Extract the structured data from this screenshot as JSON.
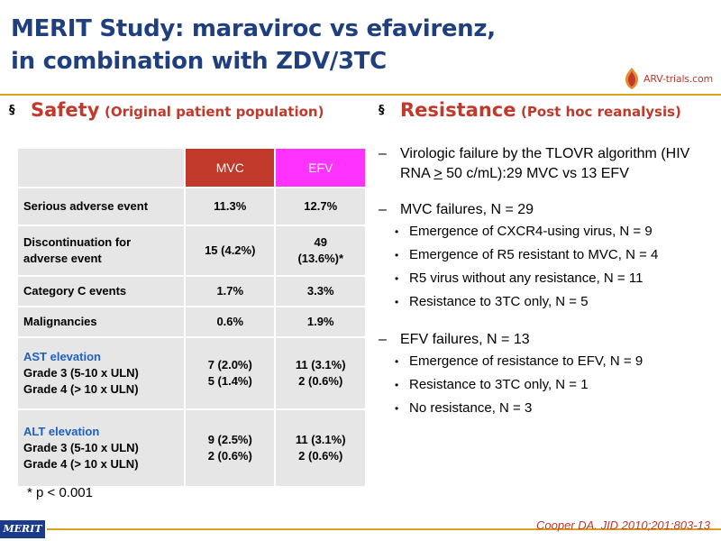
{
  "title": {
    "line1": "MERIT Study: maraviroc vs efavirenz,",
    "line2": "in combination with ZDV/3TC"
  },
  "logo": {
    "text": "ARV-trials.com",
    "icon": "logo-mark-icon"
  },
  "safety": {
    "heading": "Safety",
    "subheading": "(Original patient population)",
    "bullet": "§",
    "table": {
      "header": [
        "",
        "MVC",
        "EFV"
      ],
      "rows": [
        {
          "label": [
            "Serious adverse event"
          ],
          "mvc": [
            "11.3%"
          ],
          "efv": [
            "12.7%"
          ]
        },
        {
          "label": [
            "Discontinuation for",
            "adverse event"
          ],
          "mvc": [
            "15 (4.2%)"
          ],
          "efv": [
            "49",
            "(13.6%)*"
          ]
        },
        {
          "label": [
            "Category C events"
          ],
          "mvc": [
            "1.7%"
          ],
          "efv": [
            "3.3%"
          ]
        },
        {
          "label": [
            "Malignancies"
          ],
          "mvc": [
            "0.6%"
          ],
          "efv": [
            "1.9%"
          ]
        },
        {
          "label": [
            "AST elevation",
            "Grade 3 (5-10 x ULN)",
            "Grade 4 (> 10 x ULN)"
          ],
          "mvc": [
            "7 (2.0%)",
            "5 (1.4%)"
          ],
          "efv": [
            "11 (3.1%)",
            "2 (0.6%)"
          ]
        },
        {
          "label": [
            "ALT elevation",
            "Grade 3  (5-10 x ULN)",
            "Grade 4  (> 10 x ULN)"
          ],
          "mvc": [
            "9 (2.5%)",
            "2 (0.6%)"
          ],
          "efv": [
            "11 (3.1%)",
            "2 (0.6%)"
          ]
        }
      ]
    },
    "footnote": "* p < 0.001"
  },
  "resistance": {
    "heading": "Resistance",
    "subheading": "(Post hoc reanalysis)",
    "bullet": "§",
    "items": [
      {
        "dash": "–",
        "text_before": "Virologic failure by the TLOVR algorithm (HIV RNA ",
        "underlined": ">",
        "text_after": " 50 c/mL):29 MVC vs 13 EFV",
        "subitems": []
      },
      {
        "dash": "–",
        "text_before": "MVC failures, N = 29",
        "underlined": "",
        "text_after": "",
        "subitems": [
          "Emergence of CXCR4-using virus, N = 9",
          "Emergence of R5 resistant to MVC, N = 4",
          "R5 virus without any resistance, N = 11",
          "Resistance to 3TC only, N = 5"
        ]
      },
      {
        "dash": "–",
        "text_before": "EFV failures, N = 13",
        "underlined": "",
        "text_after": "",
        "subitems": [
          "Emergence of resistance to EFV, N = 9",
          "Resistance to 3TC only, N = 1",
          "No resistance, N = 3"
        ]
      }
    ]
  },
  "footer": {
    "badge": "MERIT",
    "citation": "Cooper DA. JID 2010;201:803-13"
  },
  "colors": {
    "title": "#1f3f7f",
    "accent_red": "#c0392b",
    "efv_magenta": "#ff33ff",
    "table_bg": "#e6e6e6",
    "rule_gold": "#d9a21b",
    "alt_ast_blue": "#1f5fbf",
    "badge_navy": "#1a3a8a"
  }
}
